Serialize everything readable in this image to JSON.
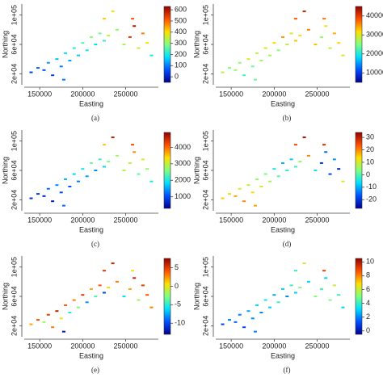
{
  "chart_data": [
    {
      "type": "scatter",
      "caption": "(a)",
      "xlabel": "Easting",
      "ylabel": "Northing",
      "x": [
        140000,
        148000,
        155000,
        160000,
        165000,
        170000,
        175000,
        180000,
        185000,
        190000,
        195000,
        200000,
        205000,
        210000,
        215000,
        220000,
        225000,
        230000,
        225000,
        235000,
        240000,
        255000,
        260000,
        265000,
        270000,
        275000,
        280000,
        258000,
        248000,
        178000
      ],
      "y": [
        22000,
        28000,
        25000,
        35000,
        18000,
        40000,
        30000,
        48000,
        38000,
        55000,
        45000,
        62000,
        52000,
        70000,
        60000,
        75000,
        65000,
        72000,
        95000,
        105000,
        80000,
        70000,
        85000,
        55000,
        75000,
        62000,
        45000,
        95000,
        60000,
        12000
      ],
      "values": [
        50,
        80,
        60,
        120,
        40,
        150,
        100,
        180,
        130,
        220,
        160,
        250,
        200,
        300,
        180,
        280,
        220,
        350,
        420,
        380,
        300,
        550,
        600,
        350,
        480,
        400,
        200,
        520,
        330,
        90
      ],
      "xlim": [
        132000,
        288000
      ],
      "ylim": [
        5000,
        115000
      ],
      "xticks": [
        150000,
        200000,
        250000
      ],
      "yticks": [
        {
          "value": 20000,
          "label": "2e+04"
        },
        {
          "value": 60000,
          "label": "6e+04"
        },
        {
          "value": 100000,
          "label": "1e+05"
        }
      ],
      "clim": [
        -50,
        630
      ],
      "cticks": [
        0,
        100,
        200,
        300,
        400,
        500,
        600
      ],
      "colormap": [
        "#00008f",
        "#0050ff",
        "#00dfff",
        "#7fff7f",
        "#ffdf00",
        "#ff5000",
        "#8f0000"
      ]
    },
    {
      "type": "scatter",
      "caption": "(b)",
      "xlabel": "Easting",
      "ylabel": "Northing",
      "x": [
        140000,
        148000,
        155000,
        160000,
        165000,
        170000,
        175000,
        180000,
        185000,
        190000,
        195000,
        200000,
        205000,
        210000,
        215000,
        220000,
        225000,
        230000,
        225000,
        235000,
        240000,
        255000,
        260000,
        265000,
        270000,
        275000,
        280000,
        258000,
        248000,
        178000
      ],
      "y": [
        22000,
        28000,
        25000,
        35000,
        18000,
        40000,
        30000,
        48000,
        38000,
        55000,
        45000,
        62000,
        52000,
        70000,
        60000,
        75000,
        65000,
        72000,
        95000,
        105000,
        80000,
        70000,
        85000,
        55000,
        75000,
        62000,
        45000,
        95000,
        60000,
        12000
      ],
      "values": [
        28000,
        25000,
        27000,
        26000,
        22000,
        30000,
        24000,
        28000,
        26000,
        30000,
        27000,
        32000,
        25000,
        35000,
        28000,
        30000,
        33000,
        31000,
        38000,
        42000,
        36000,
        26000,
        30000,
        28000,
        34000,
        32000,
        29000,
        37000,
        33000,
        24000
      ],
      "xlim": [
        132000,
        288000
      ],
      "ylim": [
        5000,
        115000
      ],
      "xticks": [
        150000,
        200000,
        250000
      ],
      "yticks": [
        {
          "value": 20000,
          "label": "2e+04"
        },
        {
          "value": 60000,
          "label": "6e+04"
        },
        {
          "value": 100000,
          "label": "1e+05"
        }
      ],
      "clim": [
        5000,
        45000
      ],
      "cticks": [
        10000,
        20000,
        30000,
        40000
      ],
      "colormap": [
        "#00008f",
        "#0050ff",
        "#00dfff",
        "#7fff7f",
        "#ffdf00",
        "#ff5000",
        "#8f0000"
      ]
    },
    {
      "type": "scatter",
      "caption": "(c)",
      "xlabel": "Easting",
      "ylabel": "Northing",
      "x": [
        140000,
        148000,
        155000,
        160000,
        165000,
        170000,
        175000,
        180000,
        185000,
        190000,
        195000,
        200000,
        205000,
        210000,
        215000,
        220000,
        225000,
        230000,
        225000,
        235000,
        240000,
        255000,
        260000,
        265000,
        270000,
        275000,
        280000,
        258000,
        248000,
        178000
      ],
      "y": [
        22000,
        28000,
        25000,
        35000,
        18000,
        40000,
        30000,
        48000,
        38000,
        55000,
        45000,
        62000,
        52000,
        70000,
        60000,
        75000,
        65000,
        72000,
        95000,
        105000,
        80000,
        70000,
        85000,
        55000,
        75000,
        62000,
        45000,
        95000,
        60000,
        12000
      ],
      "values": [
        800,
        900,
        700,
        1200,
        600,
        1400,
        1000,
        1600,
        1100,
        1800,
        1300,
        2000,
        1500,
        2500,
        1400,
        2200,
        1800,
        2600,
        3500,
        4600,
        2800,
        3000,
        3800,
        2400,
        3200,
        2700,
        2000,
        4200,
        2900,
        1200
      ],
      "xlim": [
        132000,
        288000
      ],
      "ylim": [
        5000,
        115000
      ],
      "xticks": [
        150000,
        200000,
        250000
      ],
      "yticks": [
        {
          "value": 20000,
          "label": "2e+04"
        },
        {
          "value": 60000,
          "label": "6e+04"
        },
        {
          "value": 100000,
          "label": "1e+05"
        }
      ],
      "clim": [
        300,
        4900
      ],
      "cticks": [
        1000,
        2000,
        3000,
        4000
      ],
      "colormap": [
        "#00008f",
        "#0050ff",
        "#00dfff",
        "#7fff7f",
        "#ffdf00",
        "#ff5000",
        "#8f0000"
      ]
    },
    {
      "type": "scatter",
      "caption": "(d)",
      "xlabel": "Easting",
      "ylabel": "Northing",
      "x": [
        140000,
        148000,
        155000,
        160000,
        165000,
        170000,
        175000,
        180000,
        185000,
        190000,
        195000,
        200000,
        205000,
        210000,
        215000,
        220000,
        225000,
        230000,
        225000,
        235000,
        240000,
        255000,
        260000,
        265000,
        270000,
        275000,
        280000,
        258000,
        248000,
        178000
      ],
      "y": [
        22000,
        28000,
        25000,
        35000,
        18000,
        40000,
        30000,
        48000,
        38000,
        55000,
        45000,
        62000,
        52000,
        70000,
        60000,
        75000,
        65000,
        72000,
        95000,
        105000,
        80000,
        70000,
        85000,
        55000,
        75000,
        62000,
        45000,
        95000,
        60000,
        12000
      ],
      "values": [
        15,
        12,
        18,
        10,
        20,
        8,
        14,
        5,
        10,
        2,
        6,
        -5,
        0,
        -10,
        -3,
        -8,
        -2,
        5,
        25,
        32,
        20,
        -20,
        -15,
        -18,
        -12,
        -22,
        10,
        28,
        -6,
        18
      ],
      "xlim": [
        132000,
        288000
      ],
      "ylim": [
        5000,
        115000
      ],
      "xticks": [
        150000,
        200000,
        250000
      ],
      "yticks": [
        {
          "value": 20000,
          "label": "2e+04"
        },
        {
          "value": 60000,
          "label": "6e+04"
        },
        {
          "value": 100000,
          "label": "1e+05"
        }
      ],
      "clim": [
        -27,
        34
      ],
      "cticks": [
        -20,
        -10,
        0,
        10,
        20,
        30
      ],
      "colormap": [
        "#00008f",
        "#0050ff",
        "#00dfff",
        "#7fff7f",
        "#ffdf00",
        "#ff5000",
        "#8f0000"
      ]
    },
    {
      "type": "scatter",
      "caption": "(e)",
      "xlabel": "Easting",
      "ylabel": "Northing",
      "x": [
        140000,
        148000,
        155000,
        160000,
        165000,
        170000,
        175000,
        180000,
        185000,
        190000,
        195000,
        200000,
        205000,
        210000,
        215000,
        220000,
        225000,
        230000,
        225000,
        235000,
        240000,
        255000,
        260000,
        265000,
        270000,
        275000,
        280000,
        258000,
        248000,
        178000
      ],
      "y": [
        22000,
        28000,
        25000,
        35000,
        18000,
        40000,
        30000,
        48000,
        38000,
        55000,
        45000,
        62000,
        52000,
        70000,
        60000,
        75000,
        65000,
        72000,
        95000,
        105000,
        80000,
        70000,
        85000,
        55000,
        75000,
        62000,
        45000,
        95000,
        60000,
        12000
      ],
      "values": [
        2,
        4,
        -2,
        5,
        3,
        6,
        0,
        4,
        -5,
        3,
        -3,
        5,
        -8,
        2,
        -4,
        4,
        -10,
        1,
        5,
        6,
        3,
        2,
        6,
        -2,
        5,
        4,
        3,
        0,
        -6,
        -12
      ],
      "xlim": [
        132000,
        288000
      ],
      "ylim": [
        5000,
        115000
      ],
      "xticks": [
        150000,
        200000,
        250000
      ],
      "yticks": [
        {
          "value": 20000,
          "label": "2e+04"
        },
        {
          "value": 60000,
          "label": "6e+04"
        },
        {
          "value": 100000,
          "label": "1e+05"
        }
      ],
      "clim": [
        -13,
        7.5
      ],
      "cticks": [
        -10,
        -5,
        0,
        5
      ],
      "colormap": [
        "#00008f",
        "#0050ff",
        "#00dfff",
        "#7fff7f",
        "#ffdf00",
        "#ff5000",
        "#8f0000"
      ]
    },
    {
      "type": "scatter",
      "caption": "(f)",
      "xlabel": "Easting",
      "ylabel": "Northing",
      "x": [
        140000,
        148000,
        155000,
        160000,
        165000,
        170000,
        175000,
        180000,
        185000,
        190000,
        195000,
        200000,
        205000,
        210000,
        215000,
        220000,
        225000,
        230000,
        225000,
        235000,
        240000,
        255000,
        260000,
        265000,
        270000,
        275000,
        280000,
        258000,
        248000,
        178000
      ],
      "y": [
        22000,
        28000,
        25000,
        35000,
        18000,
        40000,
        30000,
        48000,
        38000,
        55000,
        45000,
        62000,
        52000,
        70000,
        60000,
        75000,
        65000,
        72000,
        95000,
        105000,
        80000,
        70000,
        85000,
        55000,
        75000,
        62000,
        45000,
        95000,
        60000,
        12000
      ],
      "values": [
        1,
        2,
        1.5,
        2,
        1,
        2.5,
        2,
        3,
        2,
        3.5,
        3,
        2.5,
        4,
        3,
        2,
        4,
        3,
        5,
        4,
        6,
        3,
        4,
        3,
        5,
        6,
        4,
        3,
        9,
        5,
        2
      ],
      "xlim": [
        132000,
        288000
      ],
      "ylim": [
        5000,
        115000
      ],
      "xticks": [
        150000,
        200000,
        250000
      ],
      "yticks": [
        {
          "value": 20000,
          "label": "2e+04"
        },
        {
          "value": 60000,
          "label": "6e+04"
        },
        {
          "value": 100000,
          "label": "1e+05"
        }
      ],
      "clim": [
        -0.5,
        10.5
      ],
      "cticks": [
        0,
        2,
        4,
        6,
        8,
        10
      ],
      "colormap": [
        "#00008f",
        "#0050ff",
        "#00dfff",
        "#7fff7f",
        "#ffdf00",
        "#ff5000",
        "#8f0000"
      ]
    }
  ]
}
